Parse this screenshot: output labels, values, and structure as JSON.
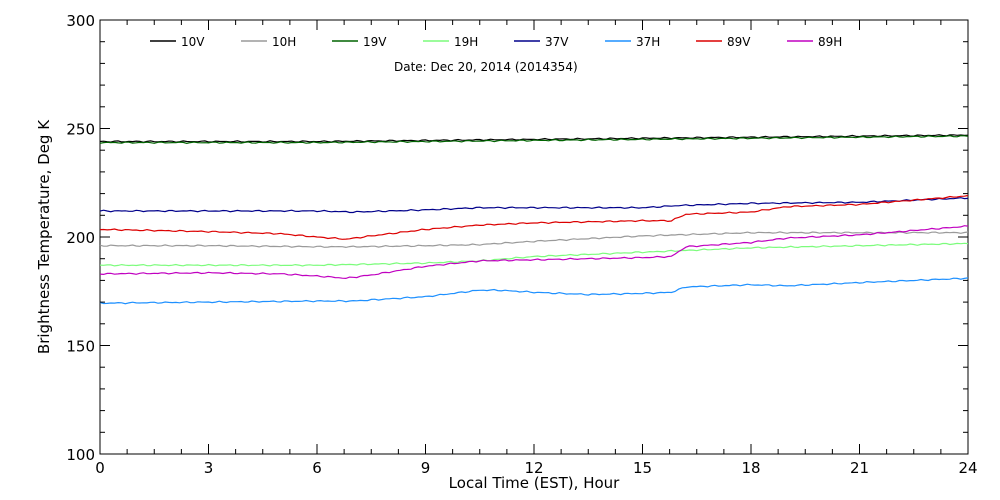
{
  "chart_data": {
    "type": "line",
    "title": "",
    "subtitle": "Date: Dec 20, 2014 (2014354)",
    "xlabel": "Local Time (EST), Hour",
    "ylabel": "Brightness Temperature, Deg K",
    "xlim": [
      0,
      24
    ],
    "ylim": [
      100,
      300
    ],
    "xticks": [
      0,
      3,
      6,
      9,
      12,
      15,
      18,
      21,
      24
    ],
    "yticks": [
      100,
      150,
      200,
      250,
      300
    ],
    "grid": false,
    "legend_position": "top",
    "series": [
      {
        "name": "10V",
        "color": "#000000",
        "x": [
          0,
          3,
          6,
          9,
          12,
          15,
          18,
          21,
          24
        ],
        "y": [
          244,
          244,
          244,
          244.5,
          245,
          245.5,
          246,
          246.5,
          247
        ]
      },
      {
        "name": "10H",
        "color": "#9a9a9a",
        "x": [
          0,
          3,
          6,
          7,
          9,
          10.5,
          12,
          15,
          18,
          21,
          24
        ],
        "y": [
          196,
          196,
          195.5,
          195.5,
          196,
          196.5,
          198,
          200.5,
          202,
          202,
          202
        ]
      },
      {
        "name": "19V",
        "color": "#006400",
        "x": [
          0,
          3,
          6,
          9,
          12,
          15,
          18,
          21,
          24
        ],
        "y": [
          243.5,
          243.5,
          243.5,
          244,
          244.5,
          245,
          245.5,
          246,
          246.5
        ]
      },
      {
        "name": "19H",
        "color": "#7cfc7c",
        "x": [
          0,
          3,
          6,
          9,
          10.5,
          12,
          15,
          18,
          21,
          24
        ],
        "y": [
          187,
          187,
          187,
          188,
          189,
          191,
          193,
          195,
          196,
          197
        ]
      },
      {
        "name": "37V",
        "color": "#00008b",
        "x": [
          0,
          3,
          6,
          7,
          9,
          10.5,
          12,
          15,
          16,
          18,
          21,
          24
        ],
        "y": [
          212,
          212,
          212,
          211.5,
          212.5,
          213.5,
          213.5,
          213.5,
          214.5,
          215.5,
          216,
          218
        ]
      },
      {
        "name": "37H",
        "color": "#1e90ff",
        "x": [
          0,
          3,
          6,
          7,
          9,
          10.5,
          11,
          12,
          13.5,
          15,
          15.8,
          16.2,
          18,
          19,
          21,
          24
        ],
        "y": [
          169.5,
          170,
          170.5,
          170.5,
          172.5,
          175.5,
          175.5,
          174.5,
          173.5,
          174,
          174.5,
          177,
          178,
          177.5,
          179,
          181
        ]
      },
      {
        "name": "89V",
        "color": "#dc0000",
        "x": [
          0,
          3,
          5,
          6,
          6.8,
          7.5,
          9,
          10.5,
          12,
          13.5,
          15,
          15.8,
          16.2,
          18,
          19,
          21,
          24
        ],
        "y": [
          203.5,
          202.5,
          201.5,
          200,
          199,
          200.5,
          203.5,
          205.5,
          206.5,
          207,
          207.5,
          207.5,
          210.5,
          211.5,
          214,
          215,
          219
        ]
      },
      {
        "name": "89H",
        "color": "#c000c0",
        "x": [
          0,
          3,
          5,
          6,
          6.8,
          7.5,
          9,
          10.5,
          12,
          13.5,
          15,
          15.8,
          16.2,
          18,
          19,
          21,
          24
        ],
        "y": [
          183,
          183.5,
          183,
          182,
          181,
          182.5,
          186.5,
          189,
          189.5,
          190,
          190.5,
          191,
          195.5,
          197.5,
          199.5,
          201,
          205
        ]
      }
    ]
  }
}
